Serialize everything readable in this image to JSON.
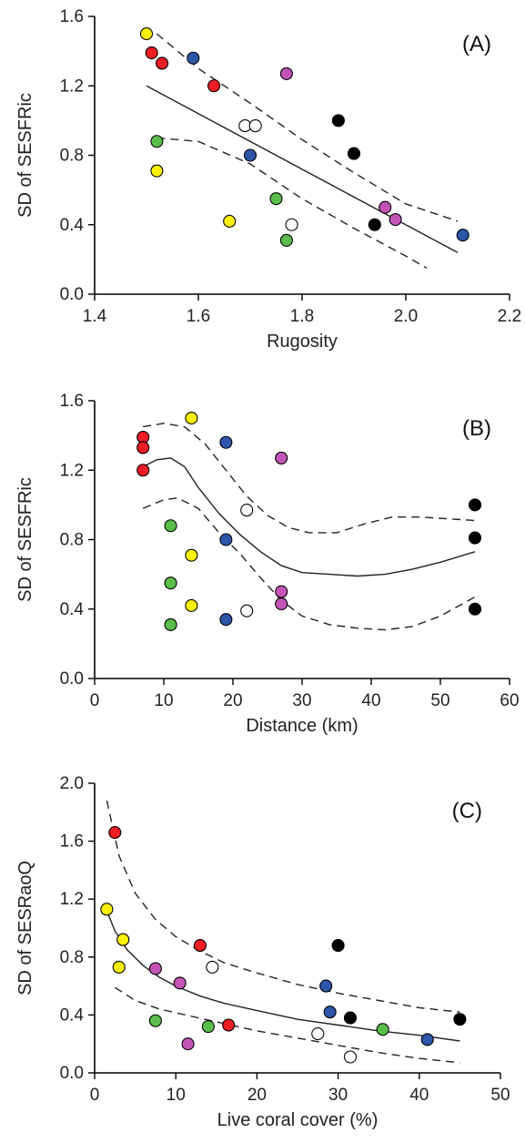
{
  "colors": {
    "red": "#ee1c24",
    "yellow": "#fff200",
    "blue": "#2e56a8",
    "purple": "#c455b7",
    "black": "#000000",
    "white": "#ffffff",
    "green": "#5bbd4a"
  },
  "chart_data": [
    {
      "type": "scatter",
      "panel_label": "(A)",
      "xlabel": "Rugosity",
      "ylabel": "SD of SESFRic",
      "xlim": [
        1.4,
        2.2
      ],
      "ylim": [
        0.0,
        1.6
      ],
      "xticks": [
        "1.4",
        "1.6",
        "1.8",
        "2.0",
        "2.2"
      ],
      "yticks": [
        "0.0",
        "0.4",
        "0.8",
        "1.2",
        "1.6"
      ],
      "points": [
        {
          "x": 1.5,
          "y": 1.5,
          "color": "yellow"
        },
        {
          "x": 1.51,
          "y": 1.39,
          "color": "red"
        },
        {
          "x": 1.53,
          "y": 1.33,
          "color": "red"
        },
        {
          "x": 1.59,
          "y": 1.36,
          "color": "blue"
        },
        {
          "x": 1.63,
          "y": 1.2,
          "color": "red"
        },
        {
          "x": 1.77,
          "y": 1.27,
          "color": "purple"
        },
        {
          "x": 1.87,
          "y": 1.0,
          "color": "black"
        },
        {
          "x": 1.69,
          "y": 0.97,
          "color": "white"
        },
        {
          "x": 1.71,
          "y": 0.97,
          "color": "white"
        },
        {
          "x": 1.52,
          "y": 0.88,
          "color": "green"
        },
        {
          "x": 1.7,
          "y": 0.8,
          "color": "blue"
        },
        {
          "x": 1.9,
          "y": 0.81,
          "color": "black"
        },
        {
          "x": 1.52,
          "y": 0.71,
          "color": "yellow"
        },
        {
          "x": 1.75,
          "y": 0.55,
          "color": "green"
        },
        {
          "x": 1.96,
          "y": 0.5,
          "color": "purple"
        },
        {
          "x": 1.98,
          "y": 0.43,
          "color": "purple"
        },
        {
          "x": 1.66,
          "y": 0.42,
          "color": "yellow"
        },
        {
          "x": 1.78,
          "y": 0.4,
          "color": "white"
        },
        {
          "x": 1.94,
          "y": 0.4,
          "color": "black"
        },
        {
          "x": 1.77,
          "y": 0.31,
          "color": "green"
        },
        {
          "x": 2.11,
          "y": 0.34,
          "color": "blue"
        }
      ],
      "fit": [
        [
          1.5,
          1.2
        ],
        [
          2.1,
          0.24
        ]
      ],
      "ci_upper": [
        [
          1.52,
          1.5
        ],
        [
          1.6,
          1.3
        ],
        [
          1.7,
          1.1
        ],
        [
          1.8,
          0.89
        ],
        [
          1.9,
          0.7
        ],
        [
          2.0,
          0.52
        ],
        [
          2.1,
          0.42
        ]
      ],
      "ci_lower": [
        [
          1.52,
          0.9
        ],
        [
          1.6,
          0.88
        ],
        [
          1.7,
          0.75
        ],
        [
          1.8,
          0.55
        ],
        [
          1.9,
          0.38
        ],
        [
          2.0,
          0.22
        ],
        [
          2.04,
          0.15
        ]
      ]
    },
    {
      "type": "scatter",
      "panel_label": "(B)",
      "xlabel": "Distance (km)",
      "ylabel": "SD of SESFRic",
      "xlim": [
        0,
        60
      ],
      "ylim": [
        0.0,
        1.6
      ],
      "xticks": [
        "0",
        "10",
        "20",
        "30",
        "40",
        "50",
        "60"
      ],
      "yticks": [
        "0.0",
        "0.4",
        "0.8",
        "1.2",
        "1.6"
      ],
      "points": [
        {
          "x": 7,
          "y": 1.39,
          "color": "red"
        },
        {
          "x": 7,
          "y": 1.33,
          "color": "red"
        },
        {
          "x": 7,
          "y": 1.2,
          "color": "red"
        },
        {
          "x": 14,
          "y": 1.5,
          "color": "yellow"
        },
        {
          "x": 19,
          "y": 1.36,
          "color": "blue"
        },
        {
          "x": 27,
          "y": 1.27,
          "color": "purple"
        },
        {
          "x": 22,
          "y": 0.97,
          "color": "white"
        },
        {
          "x": 11,
          "y": 0.88,
          "color": "green"
        },
        {
          "x": 19,
          "y": 0.8,
          "color": "blue"
        },
        {
          "x": 14,
          "y": 0.71,
          "color": "yellow"
        },
        {
          "x": 11,
          "y": 0.55,
          "color": "green"
        },
        {
          "x": 27,
          "y": 0.5,
          "color": "purple"
        },
        {
          "x": 27,
          "y": 0.43,
          "color": "purple"
        },
        {
          "x": 14,
          "y": 0.42,
          "color": "yellow"
        },
        {
          "x": 22,
          "y": 0.39,
          "color": "white"
        },
        {
          "x": 19,
          "y": 0.34,
          "color": "blue"
        },
        {
          "x": 11,
          "y": 0.31,
          "color": "green"
        },
        {
          "x": 55,
          "y": 1.0,
          "color": "black"
        },
        {
          "x": 55,
          "y": 0.81,
          "color": "black"
        },
        {
          "x": 55,
          "y": 0.4,
          "color": "black"
        }
      ],
      "fit": [
        [
          7,
          1.22
        ],
        [
          9,
          1.26
        ],
        [
          11,
          1.27
        ],
        [
          13,
          1.22
        ],
        [
          15,
          1.1
        ],
        [
          18,
          0.95
        ],
        [
          21,
          0.83
        ],
        [
          24,
          0.73
        ],
        [
          27,
          0.65
        ],
        [
          30,
          0.61
        ],
        [
          34,
          0.6
        ],
        [
          38,
          0.59
        ],
        [
          42,
          0.6
        ],
        [
          46,
          0.63
        ],
        [
          50,
          0.67
        ],
        [
          55,
          0.73
        ]
      ],
      "ci_upper": [
        [
          7,
          1.45
        ],
        [
          10,
          1.47
        ],
        [
          13,
          1.45
        ],
        [
          16,
          1.35
        ],
        [
          19,
          1.2
        ],
        [
          22,
          1.05
        ],
        [
          25,
          0.94
        ],
        [
          28,
          0.87
        ],
        [
          31,
          0.84
        ],
        [
          35,
          0.84
        ],
        [
          39,
          0.89
        ],
        [
          43,
          0.93
        ],
        [
          47,
          0.93
        ],
        [
          51,
          0.92
        ],
        [
          55,
          0.91
        ]
      ],
      "ci_lower": [
        [
          7,
          0.98
        ],
        [
          10,
          1.03
        ],
        [
          12,
          1.04
        ],
        [
          15,
          0.98
        ],
        [
          18,
          0.84
        ],
        [
          21,
          0.72
        ],
        [
          24,
          0.58
        ],
        [
          27,
          0.45
        ],
        [
          30,
          0.36
        ],
        [
          34,
          0.31
        ],
        [
          38,
          0.29
        ],
        [
          42,
          0.28
        ],
        [
          46,
          0.3
        ],
        [
          50,
          0.36
        ],
        [
          55,
          0.47
        ]
      ]
    },
    {
      "type": "scatter",
      "panel_label": "(C)",
      "xlabel": "Live coral cover (%)",
      "ylabel": "SD of SESRaoQ",
      "xlim": [
        0,
        50
      ],
      "ylim": [
        0.0,
        2.0
      ],
      "xticks": [
        "0",
        "10",
        "20",
        "30",
        "40",
        "50"
      ],
      "yticks": [
        "0.0",
        "0.4",
        "0.8",
        "1.2",
        "1.6",
        "2.0"
      ],
      "points": [
        {
          "x": 2.5,
          "y": 1.66,
          "color": "red"
        },
        {
          "x": 1.5,
          "y": 1.13,
          "color": "yellow"
        },
        {
          "x": 3.5,
          "y": 0.92,
          "color": "yellow"
        },
        {
          "x": 3.0,
          "y": 0.73,
          "color": "yellow"
        },
        {
          "x": 7.5,
          "y": 0.72,
          "color": "purple"
        },
        {
          "x": 10.5,
          "y": 0.62,
          "color": "purple"
        },
        {
          "x": 11.5,
          "y": 0.2,
          "color": "purple"
        },
        {
          "x": 7.5,
          "y": 0.36,
          "color": "green"
        },
        {
          "x": 14.0,
          "y": 0.32,
          "color": "green"
        },
        {
          "x": 35.5,
          "y": 0.3,
          "color": "green"
        },
        {
          "x": 13.0,
          "y": 0.88,
          "color": "red"
        },
        {
          "x": 16.5,
          "y": 0.33,
          "color": "red"
        },
        {
          "x": 14.5,
          "y": 0.73,
          "color": "white"
        },
        {
          "x": 27.5,
          "y": 0.27,
          "color": "white"
        },
        {
          "x": 31.5,
          "y": 0.11,
          "color": "white"
        },
        {
          "x": 30.0,
          "y": 0.88,
          "color": "black"
        },
        {
          "x": 31.5,
          "y": 0.38,
          "color": "black"
        },
        {
          "x": 45.0,
          "y": 0.37,
          "color": "black"
        },
        {
          "x": 28.5,
          "y": 0.6,
          "color": "blue"
        },
        {
          "x": 29.0,
          "y": 0.42,
          "color": "blue"
        },
        {
          "x": 41.0,
          "y": 0.23,
          "color": "blue"
        }
      ],
      "fit": [
        [
          1.5,
          1.12
        ],
        [
          2.5,
          0.98
        ],
        [
          4,
          0.85
        ],
        [
          6,
          0.74
        ],
        [
          8,
          0.66
        ],
        [
          10,
          0.6
        ],
        [
          13,
          0.53
        ],
        [
          16,
          0.48
        ],
        [
          20,
          0.43
        ],
        [
          25,
          0.37
        ],
        [
          30,
          0.33
        ],
        [
          35,
          0.29
        ],
        [
          40,
          0.26
        ],
        [
          45,
          0.22
        ]
      ],
      "ci_upper": [
        [
          1.5,
          1.88
        ],
        [
          3,
          1.5
        ],
        [
          5,
          1.24
        ],
        [
          7.5,
          1.06
        ],
        [
          10,
          0.94
        ],
        [
          13,
          0.84
        ],
        [
          16,
          0.76
        ],
        [
          20,
          0.69
        ],
        [
          25,
          0.61
        ],
        [
          30,
          0.55
        ],
        [
          35,
          0.5
        ],
        [
          40,
          0.45
        ],
        [
          45,
          0.42
        ]
      ],
      "ci_lower": [
        [
          2.5,
          0.59
        ],
        [
          5,
          0.5
        ],
        [
          8,
          0.44
        ],
        [
          12,
          0.39
        ],
        [
          16,
          0.34
        ],
        [
          20,
          0.29
        ],
        [
          25,
          0.24
        ],
        [
          30,
          0.19
        ],
        [
          35,
          0.14
        ],
        [
          40,
          0.1
        ],
        [
          45,
          0.07
        ]
      ]
    }
  ]
}
